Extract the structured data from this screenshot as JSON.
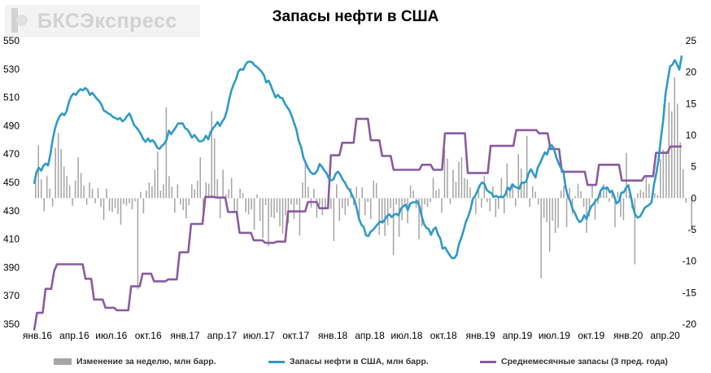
{
  "logo": {
    "text": "БКСЭкспресс"
  },
  "chart_data": {
    "type": "bar+line",
    "title": "Запасы нефти в США",
    "x_tick_labels": [
      "янв.16",
      "апр.16",
      "июл.16",
      "окт.16",
      "янв.17",
      "апр.17",
      "июл.17",
      "окт.17",
      "янв.18",
      "апр.18",
      "июл.18",
      "окт.18",
      "янв.19",
      "апр.19",
      "июл.19",
      "окт.19",
      "янв.20",
      "апр.20"
    ],
    "x_range_weeks": [
      0,
      228
    ],
    "left_axis": {
      "ylim": [
        350,
        550
      ],
      "ticks": [
        350,
        370,
        390,
        410,
        430,
        450,
        470,
        490,
        510,
        530,
        550
      ]
    },
    "right_axis": {
      "ylim": [
        -20,
        25
      ],
      "ticks": [
        -20,
        -15,
        -10,
        -5,
        0,
        5,
        10,
        15,
        20,
        25
      ]
    },
    "grid": false,
    "legend_position": "bottom",
    "colors": {
      "bars": "#a6a6a6",
      "stocks": "#2e9ac8",
      "avg": "#8a5aa0"
    },
    "series": [
      {
        "name": "Изменение за неделю, млн барр.",
        "axis": "right",
        "kind": "bar",
        "values": [
          4.0,
          8.4,
          3.0,
          -2.1,
          3.5,
          1.5,
          -1.3,
          8.0,
          10.4,
          7.8,
          5.0,
          3.5,
          2.0,
          -1.2,
          2.8,
          6.5,
          4.0,
          2.0,
          -1.0,
          2.5,
          1.5,
          -0.8,
          1.6,
          -1.4,
          -3.5,
          1.5,
          -2.0,
          -2.2,
          -1.6,
          -2.5,
          -4.2,
          -0.9,
          -1.2,
          -0.8,
          -1.8,
          -0.5,
          -14.5,
          1.0,
          -2.4,
          1.2,
          2.5,
          1.9,
          4.5,
          7.4,
          1.2,
          2.2,
          14.4,
          3.5,
          1.8,
          -2.3,
          2.2,
          -1.0,
          -1.9,
          -3.2,
          -1.1,
          2.2,
          1.4,
          2.8,
          6.5,
          -2.5,
          2.5,
          2.3,
          13.8,
          9.5,
          3.0,
          -3.2,
          4.5,
          0.6,
          1.4,
          3.2,
          -2.1,
          -2.4,
          1.5,
          0.8,
          -2.2,
          -2.6,
          -1.8,
          -5.0,
          0.6,
          -3.6,
          -6.3,
          -1.1,
          -7.6,
          -3.0,
          -3.2,
          -2.3,
          -4.5,
          -5.6,
          -2.7,
          -4.0,
          -1.0,
          -3.3,
          -1.0,
          -5.9,
          2.5,
          5.6,
          1.8,
          -1.5,
          1.5,
          -3.1,
          -1.1,
          -2.7,
          -1.6,
          -1.1,
          -1.7,
          -6.8,
          2.2,
          -3.6,
          -1.6,
          -2.6,
          -1.3,
          1.6,
          -1.1,
          1.8,
          -3.5,
          1.7,
          -2.7,
          -0.6,
          -3.3,
          2.8,
          2.4,
          -5.8,
          -3.7,
          -6.0,
          -4.3,
          -1.6,
          -9.0,
          -1.0,
          -6.1,
          -3.5,
          -0.8,
          -4.0,
          2.0,
          1.2,
          -1.5,
          -6.5,
          -4.5,
          -1.0,
          -1.4,
          -0.6,
          3.2,
          1.2,
          1.5,
          -2.3,
          7.8,
          6.3,
          -0.9,
          4.5,
          2.6,
          5.8,
          6.5,
          3.2,
          3.0,
          1.7,
          -0.7,
          -2.5,
          2.0,
          -1.5,
          3.5,
          -0.6,
          -2.1,
          1.9,
          -3.0,
          -1.7,
          3.2,
          -2.4,
          5.5,
          1.8,
          2.1,
          -1.3,
          7.0,
          4.7,
          2.7,
          9.9,
          -1.4,
          1.9,
          1.0,
          -1.0,
          -12.7,
          -3.1,
          -3.8,
          -8.5,
          -3.6,
          -5.5,
          -4.7,
          1.2,
          2.0,
          -4.6,
          1.6,
          -2.5,
          0.3,
          2.3,
          1.1,
          -1.4,
          -5.5,
          -2.9,
          2.2,
          -3.4,
          -0.9,
          1.4,
          2.2,
          1.9,
          -0.6,
          1.4,
          -4.6,
          1.0,
          -3.0,
          -3.5,
          7.2,
          0.5,
          -1.6,
          -10.5,
          0.8,
          1.3,
          1.0,
          3.3,
          2.3,
          0.4,
          0.8,
          0.5,
          6.2,
          7.7,
          7.5,
          15.2,
          13.8,
          19.2,
          15.0,
          8.9,
          4.6,
          -0.7,
          -0.1,
          -5.0
        ]
      },
      {
        "name": "Запасы нефти в США, млн барр.",
        "axis": "left",
        "kind": "line",
        "values": [
          449.0,
          457.4,
          460.4,
          458.3,
          461.8,
          463.3,
          462.0,
          470.0,
          480.4,
          488.2,
          493.2,
          496.7,
          498.7,
          497.5,
          500.3,
          506.8,
          510.8,
          512.8,
          511.8,
          514.3,
          515.8,
          515.0,
          516.6,
          515.2,
          511.7,
          513.2,
          511.2,
          509.0,
          507.4,
          504.9,
          500.7,
          499.8,
          498.6,
          497.8,
          496.0,
          495.5,
          494.5,
          495.5,
          493.1,
          494.3,
          496.8,
          498.7,
          495.2,
          490.6,
          488.8,
          486.7,
          484.0,
          480.5,
          478.7,
          481.0,
          478.8,
          479.8,
          477.9,
          474.7,
          473.6,
          475.8,
          477.2,
          480.0,
          486.5,
          484.0,
          486.5,
          488.8,
          491.6,
          491.6,
          491.6,
          488.4,
          487.4,
          484.8,
          481.6,
          483.5,
          481.4,
          479.0,
          479.0,
          479.8,
          483.0,
          480.4,
          485.4,
          488.1,
          490.0,
          492.6,
          489.8,
          493.0,
          495.2,
          500.3,
          508.5,
          515.0,
          519.5,
          523.0,
          528.4,
          530.0,
          529.4,
          532.9,
          535.0,
          535.3,
          534.7,
          532.6,
          531.5,
          529.8,
          528.2,
          525.5,
          520.5,
          521.9,
          518.3,
          513.9,
          510.0,
          511.8,
          509.8,
          509.4,
          505.6,
          503.2,
          500.8,
          496.7,
          492.0,
          487.1,
          479.4,
          475.0,
          467.4,
          463.7,
          460.1,
          457.5,
          455.9,
          456.2,
          458.4,
          463.0,
          461.1,
          458.4,
          456.5,
          452.6,
          451.5,
          452.2,
          456.3,
          457.5,
          455.2,
          451.8,
          449.6,
          446.2,
          444.4,
          440.9,
          437.6,
          431.5,
          424.1,
          420.1,
          418.5,
          412.6,
          412.1,
          415.3,
          416.5,
          418.5,
          420.5,
          422.4,
          421.7,
          423.5,
          426.2,
          427.5,
          425.5,
          427.2,
          427.8,
          426.8,
          431.5,
          433.0,
          434.4,
          430.5,
          435.0,
          435.9,
          436.0,
          436.8,
          433.1,
          425.8,
          420.5,
          417.8,
          417.1,
          413.0,
          416.8,
          418.2,
          413.4,
          410.4,
          403.2,
          404.2,
          401.5,
          398.8,
          396.6,
          396.6,
          398.8,
          406.3,
          410.8,
          416.0,
          422.2,
          425.9,
          431.0,
          438.3,
          440.5,
          443.9,
          448.0,
          450.0,
          448.9,
          444.7,
          443.3,
          442.4,
          439.9,
          440.5,
          439.5,
          440.0,
          439.5,
          441.5,
          446.3,
          444.6,
          448.7,
          447.0,
          446.4,
          445.5,
          449.8,
          449.8,
          450.5,
          456.3,
          459.3,
          456.3,
          453.5,
          460.6,
          463.8,
          467.4,
          471.2,
          469.7,
          475.0,
          476.3,
          473.5,
          467.6,
          463.4,
          460.0,
          458.0,
          446.8,
          439.8,
          436.7,
          431.0,
          428.2,
          424.4,
          422.0,
          423.1,
          426.8,
          424.2,
          429.1,
          433.0,
          434.8,
          437.2,
          438.6,
          443.9,
          446.4,
          445.7,
          446.3,
          443.0,
          444.0,
          439.7,
          435.2,
          436.8,
          442.7,
          443.0,
          446.1,
          448.0,
          441.1,
          432.4,
          427.2,
          425.2,
          425.8,
          428.6,
          432.0,
          433.2,
          434.2,
          436.0,
          448.2,
          456.0,
          465.9,
          480.6,
          493.6,
          512.0,
          522.4,
          531.7,
          533.1,
          536.3,
          533.2,
          529.6,
          539.5
        ]
      },
      {
        "name": "Среднемесячные запасы (3 пред. года)",
        "axis": "right",
        "kind": "line",
        "values": [
          -21.0,
          -18.2,
          -18.2,
          -18.2,
          -14.4,
          -14.4,
          -14.4,
          -11.6,
          -10.5,
          -10.5,
          -10.5,
          -10.5,
          -10.5,
          -10.5,
          -10.5,
          -10.5,
          -10.5,
          -10.5,
          -12.8,
          -12.8,
          -12.8,
          -16.1,
          -16.1,
          -16.1,
          -16.1,
          -17.4,
          -17.4,
          -17.4,
          -17.4,
          -17.8,
          -17.8,
          -17.8,
          -17.8,
          -17.8,
          -14.0,
          -14.0,
          -14.0,
          -14.0,
          -12.0,
          -12.0,
          -12.0,
          -12.0,
          -13.2,
          -13.2,
          -13.2,
          -13.2,
          -13.2,
          -12.9,
          -12.9,
          -12.9,
          -12.9,
          -8.6,
          -8.6,
          -8.6,
          -8.6,
          -4.1,
          -4.1,
          -4.1,
          -4.1,
          -4.1,
          0.2,
          0.2,
          0.2,
          0.2,
          0.1,
          0.1,
          0.1,
          0.1,
          -2.2,
          -2.2,
          -2.2,
          -2.2,
          -5.5,
          -5.5,
          -5.5,
          -5.5,
          -5.5,
          -6.7,
          -6.7,
          -6.7,
          -6.7,
          -7.1,
          -7.1,
          -7.1,
          -7.1,
          -6.9,
          -6.9,
          -6.9,
          -6.9,
          -2.1,
          -2.1,
          -2.1,
          -2.1,
          -2.1,
          -2.1,
          -2.1,
          -0.6,
          -0.6,
          -0.6,
          -0.6,
          -1.6,
          -1.6,
          -1.6,
          -1.6,
          6.8,
          6.8,
          6.8,
          6.8,
          8.8,
          8.8,
          8.8,
          8.8,
          8.8,
          12.6,
          12.6,
          12.6,
          12.6,
          12.6,
          9.2,
          9.2,
          9.2,
          9.2,
          6.7,
          6.7,
          6.7,
          6.7,
          4.5,
          4.5,
          4.5,
          4.5,
          4.5,
          4.5,
          4.5,
          4.5,
          4.5,
          4.5,
          5.3,
          5.3,
          5.3,
          5.3,
          4.5,
          4.5,
          4.5,
          4.5,
          10.3,
          10.3,
          10.3,
          10.3,
          10.3,
          10.3,
          10.3,
          10.3,
          4.0,
          4.0,
          4.0,
          4.0,
          4.0,
          4.0,
          4.0,
          4.0,
          8.3,
          8.3,
          8.3,
          8.3,
          8.3,
          8.3,
          8.3,
          8.3,
          8.3,
          10.8,
          10.8,
          10.8,
          10.8,
          10.8,
          10.8,
          10.8,
          10.8,
          10.3,
          10.3,
          10.3,
          10.3,
          7.8,
          7.8,
          7.8,
          7.8,
          4.2,
          4.2,
          4.2,
          4.2,
          4.2,
          4.2,
          4.2,
          4.2,
          4.2,
          2.1,
          2.1,
          2.1,
          2.1,
          5.3,
          5.3,
          5.3,
          5.3,
          5.3,
          5.3,
          5.3,
          5.3,
          2.8,
          2.8,
          2.8,
          2.8,
          2.8,
          2.8,
          2.8,
          2.8,
          3.5,
          3.5,
          3.5,
          3.5,
          7.2,
          7.2,
          7.2,
          7.2,
          7.2,
          8.2,
          8.2,
          8.2,
          8.2,
          8.2
        ]
      }
    ]
  }
}
